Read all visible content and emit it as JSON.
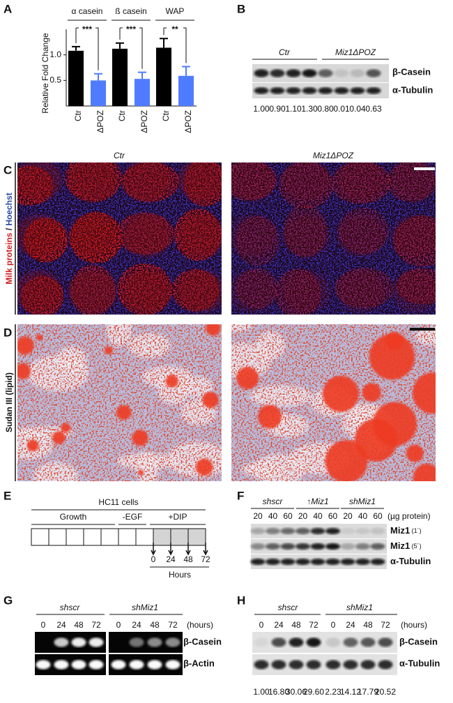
{
  "panel_a": {
    "label": "A",
    "type": "bar",
    "groups": [
      "α casein",
      "ß casein",
      "WAP"
    ],
    "significance": [
      "***",
      "***",
      "**"
    ],
    "y_label": "Relative Fold Change",
    "categories": [
      "Ctr",
      "ΔPOZ",
      "Ctr",
      "ΔPOZ",
      "Ctr",
      "ΔPOZ"
    ],
    "values": [
      1.08,
      0.5,
      1.12,
      0.53,
      1.14,
      0.59
    ],
    "errors": [
      0.08,
      0.13,
      0.11,
      0.13,
      0.18,
      0.18
    ],
    "colors": [
      "#000000",
      "#4f7cff"
    ],
    "ylim": [
      0,
      1.5
    ],
    "yticks": [
      0.5,
      {
        "value": 1,
        "label": "1.0"
      }
    ]
  },
  "panel_b": {
    "label": "B",
    "groups": [
      "Ctr",
      "Miz1ΔPOZ"
    ],
    "rows": [
      "β-Casein",
      "α-Tubulin"
    ],
    "quantification": [
      "1.00",
      "0.90",
      "1.10",
      "1.30",
      "0.80",
      "0.01",
      "0.04",
      "0.63"
    ]
  },
  "panel_c": {
    "label": "C",
    "columns": [
      "Ctr",
      "Miz1ΔPOZ"
    ],
    "side_label": [
      "Milk proteins",
      "/",
      "Hoechst"
    ]
  },
  "panel_d": {
    "label": "D",
    "side_label": "Sudan III (lipid)"
  },
  "panel_e": {
    "label": "E",
    "title": "HC11 cells",
    "phases": [
      "Growth",
      "-EGF",
      "+DIP"
    ],
    "times": [
      "0",
      "24",
      "48",
      "72"
    ],
    "time_label": "Hours"
  },
  "panel_f": {
    "label": "F",
    "groups": [
      "shscr",
      "↑Miz1",
      "shMiz1"
    ],
    "lanes": [
      "20",
      "40",
      "60",
      "20",
      "40",
      "60",
      "20",
      "40",
      "60"
    ],
    "lane_unit": "(µg protein)",
    "rows": [
      {
        "name": "Miz1",
        "note": "(1´)"
      },
      {
        "name": "Miz1",
        "note": "(5´)"
      },
      {
        "name": "α-Tubulin"
      }
    ]
  },
  "panel_g": {
    "label": "G",
    "groups": [
      "shscr",
      "shMiz1"
    ],
    "lanes": [
      "0",
      "24",
      "48",
      "72",
      "0",
      "24",
      "48",
      "72"
    ],
    "lane_unit": "(hours)",
    "rows": [
      "β-Casein",
      "β-Actin"
    ]
  },
  "panel_h": {
    "label": "H",
    "groups": [
      "shscr",
      "shMiz1"
    ],
    "lanes": [
      "0",
      "24",
      "48",
      "72",
      "0",
      "24",
      "48",
      "72"
    ],
    "lane_unit": "(hours)",
    "rows": [
      "β-Casein",
      "α-Tubulin"
    ],
    "quantification": [
      "1.00",
      "16.80",
      "30.06",
      "29.60",
      "2.23",
      "14.12",
      "17.79",
      "20.52"
    ]
  }
}
